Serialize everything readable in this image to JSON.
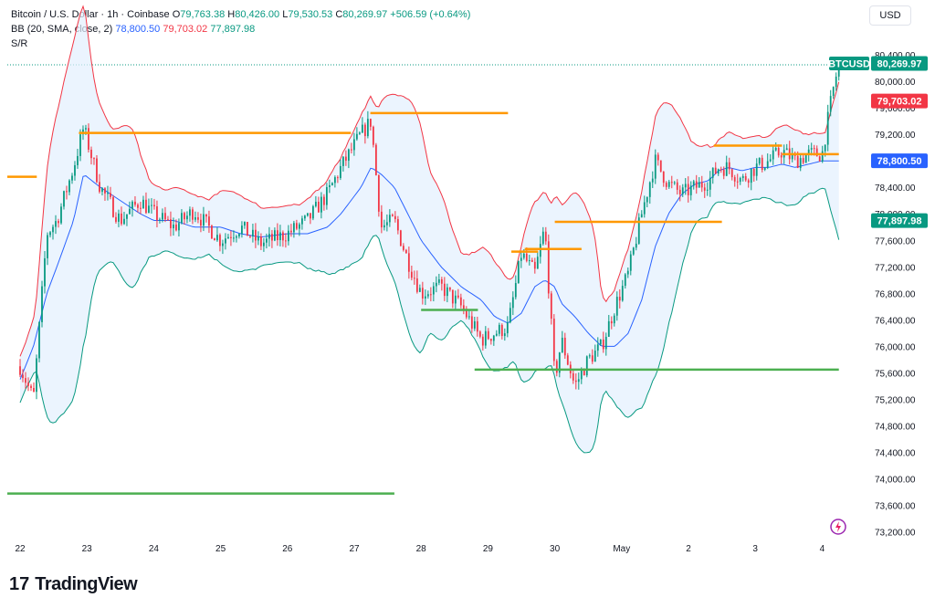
{
  "legend": {
    "title": "Bitcoin / U.S. Dollar · 1h · Coinbase",
    "o_label": "O",
    "o_value": "79,763.38",
    "h_label": "H",
    "h_value": "80,426.00",
    "l_label": "L",
    "l_value": "79,530.53",
    "c_label": "C",
    "c_value": "80,269.97",
    "change": "+506.59 (+0.64%)",
    "bb_label": "BB (20, SMA, close, 2)",
    "bb_basis": "78,800.50",
    "bb_upper": "79,703.02",
    "bb_lower": "77,897.98",
    "sr_label": "S/R"
  },
  "currency_button": "USD",
  "footer_brand": "TradingView",
  "colors": {
    "up": "#089981",
    "down": "#f23645",
    "basis": "#2962ff",
    "upper": "#f23645",
    "lower": "#089981",
    "band_fill": "#e3effd",
    "resistance": "#ff9800",
    "support": "#4caf50"
  },
  "chart_data": {
    "type": "candlestick",
    "symbol_tag": "BTCUSD",
    "ylim": [
      73000,
      81000
    ],
    "y_ticks": [
      "80,400.00",
      "80,000.00",
      "79,600.00",
      "79,200.00",
      "78,800.00",
      "78,400.00",
      "78,000.00",
      "77,600.00",
      "77,200.00",
      "76,800.00",
      "76,400.00",
      "76,000.00",
      "75,600.00",
      "75,200.00",
      "74,800.00",
      "74,400.00",
      "74,000.00",
      "73,600.00",
      "73,200.00"
    ],
    "y_tick_values": [
      80400,
      80000,
      79600,
      79200,
      78800,
      78400,
      78000,
      77600,
      77200,
      76800,
      76400,
      76000,
      75600,
      75200,
      74800,
      74400,
      74000,
      73600,
      73200
    ],
    "x_labels": [
      "22",
      "23",
      "24",
      "25",
      "26",
      "27",
      "28",
      "29",
      "30",
      "May",
      "2",
      "3",
      "4"
    ],
    "price_tags": [
      {
        "label": "80,269.97",
        "value": 80269.97,
        "color": "#089981"
      },
      {
        "label": "79,703.02",
        "value": 79703.02,
        "color": "#f23645"
      },
      {
        "label": "78,800.50",
        "value": 78800.5,
        "color": "#2962ff"
      },
      {
        "label": "77,897.98",
        "value": 77897.98,
        "color": "#089981"
      }
    ],
    "resistance_lines": [
      {
        "x0": -0.4,
        "x1": 0.25,
        "y": 78560
      },
      {
        "x0": 0.88,
        "x1": 4.95,
        "y": 79220
      },
      {
        "x0": 5.24,
        "x1": 7.3,
        "y": 79520
      },
      {
        "x0": 7.35,
        "x1": 7.75,
        "y": 77430
      },
      {
        "x0": 7.55,
        "x1": 8.4,
        "y": 77470
      },
      {
        "x0": 8.0,
        "x1": 10.5,
        "y": 77880
      },
      {
        "x0": 10.38,
        "x1": 11.4,
        "y": 79030
      },
      {
        "x0": 11.4,
        "x1": 12.25,
        "y": 78900
      }
    ],
    "support_lines": [
      {
        "x0": -0.4,
        "x1": 5.6,
        "y": 73780
      },
      {
        "x0": 6.0,
        "x1": 6.85,
        "y": 76550
      },
      {
        "x0": 6.8,
        "x1": 12.25,
        "y": 75650
      }
    ],
    "anchors": {
      "x": [
        0,
        0.2,
        0.4,
        0.55,
        0.8,
        0.95,
        1.2,
        1.5,
        1.8,
        2.0,
        2.3,
        2.6,
        3.0,
        3.3,
        3.6,
        4.0,
        4.3,
        4.6,
        4.8,
        5.1,
        5.25,
        5.4,
        5.6,
        5.8,
        6.0,
        6.3,
        6.6,
        6.9,
        7.1,
        7.3,
        7.5,
        7.7,
        7.85,
        8.0,
        8.1,
        8.3,
        8.5,
        8.7,
        8.9,
        9.1,
        9.3,
        9.5,
        9.7,
        9.9,
        10.1,
        10.3,
        10.45,
        10.6,
        10.8,
        11.0,
        11.2,
        11.4,
        11.6,
        11.8,
        12.0,
        12.15,
        12.25
      ],
      "close": [
        75700,
        75200,
        77700,
        77900,
        78700,
        79300,
        78400,
        77900,
        78200,
        78000,
        77800,
        78050,
        77600,
        77800,
        77550,
        77700,
        77900,
        78300,
        78700,
        79200,
        79400,
        77800,
        77900,
        77300,
        76800,
        76900,
        76600,
        76100,
        76200,
        76300,
        77400,
        77100,
        77800,
        75500,
        76100,
        75400,
        75800,
        76000,
        76600,
        77100,
        78000,
        78800,
        78450,
        78300,
        78400,
        78500,
        78700,
        78700,
        78500,
        78700,
        78800,
        78950,
        78800,
        78900,
        78900,
        79800,
        80270
      ],
      "basis": [
        75500,
        76000,
        76800,
        77200,
        77900,
        78600,
        78400,
        78200,
        78000,
        77900,
        77900,
        77800,
        77800,
        77700,
        77650,
        77700,
        77700,
        77800,
        78000,
        78400,
        78700,
        78600,
        78400,
        78000,
        77600,
        77200,
        76900,
        76700,
        76450,
        76350,
        76500,
        76900,
        77000,
        76900,
        76650,
        76450,
        76200,
        76000,
        76000,
        76200,
        76700,
        77500,
        78000,
        78300,
        78450,
        78500,
        78650,
        78700,
        78650,
        78700,
        78700,
        78750,
        78700,
        78750,
        78800,
        78800,
        78800
      ]
    }
  }
}
